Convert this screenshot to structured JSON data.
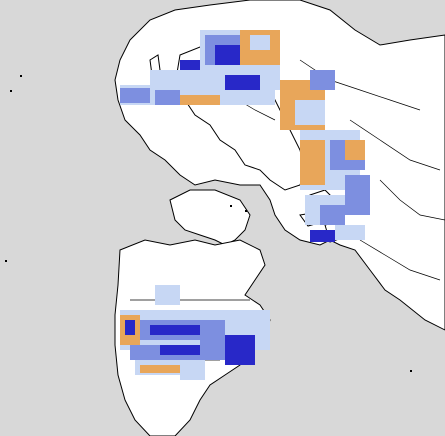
{
  "map": {
    "projection": "polar-stereographic-north",
    "colors": {
      "ocean": "#d8d8d8",
      "land": "#ffffff",
      "border": "#000000",
      "snow_light": "#c7d7f4",
      "snow_medium": "#7d8fe0",
      "snow_heavy": "#2828c8",
      "snow_fresh": "#ffffff",
      "snow_melt": "#e8a65a"
    },
    "legend_categories": [
      "snow_light",
      "snow_medium",
      "snow_heavy",
      "snow_melt"
    ]
  }
}
